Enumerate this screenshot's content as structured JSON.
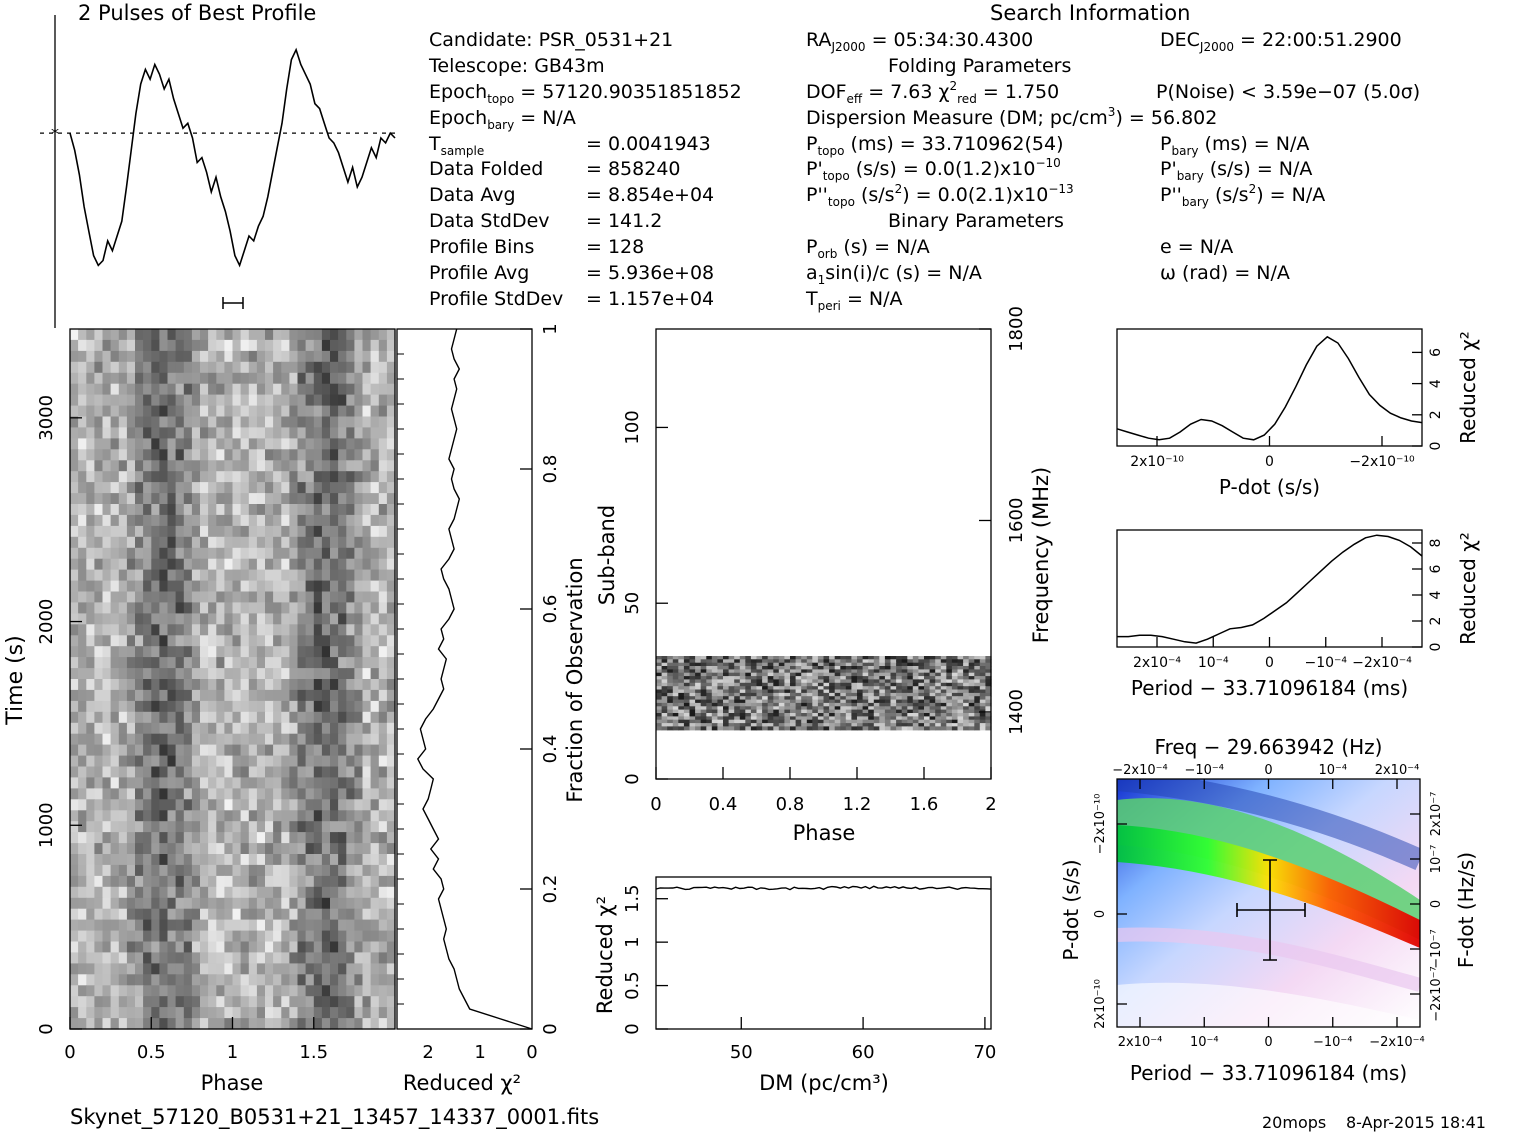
{
  "colors": {
    "ink": "#000000",
    "background": "#ffffff"
  },
  "header": {
    "profile_title": "2 Pulses of Best Profile",
    "search_title": "Search Information",
    "folding_title": "Folding Parameters",
    "binary_title": "Binary Parameters"
  },
  "info": {
    "candidate": "Candidate:  PSR_0531+21",
    "telescope": "Telescope:  GB43m",
    "epoch_topo": "= 57120.90351851852",
    "epoch_bary": "= N/A",
    "t_sample": "=   0.0041943",
    "data_folded": "=   858240",
    "data_avg": "=   8.854e+04",
    "data_stddev": "=   141.2",
    "profile_bins": "=   128",
    "profile_avg": "=   5.936e+08",
    "profile_stddev": "=   1.157e+04",
    "labels": {
      "epoch": "Epoch",
      "t": "T",
      "data_folded": "Data Folded",
      "data_avg": "Data Avg",
      "data_stddev": "Data StdDev",
      "profile_bins": "Profile Bins",
      "profile_avg": "Profile Avg",
      "profile_stddev": "Profile StdDev",
      "sub_topo": "topo",
      "sub_bary": "bary",
      "sub_sample": "sample"
    },
    "ra": "= 05:34:30.4300",
    "dec": "= 22:00:51.2900",
    "dof": "= 7.63",
    "chi2": "= 1.750",
    "p_noise": "P(Noise) < 3.59e−07  (5.0σ)",
    "dm": "Dispersion Measure (DM; pc/cm",
    "dm_value": ") = 56.802",
    "p_topo": "(ms) =  33.710962(54)",
    "p_bary": "(ms) = N/A",
    "pd_topo": "(s/s) = 0.0(1.2)x10",
    "pd_topo_exp": "−10",
    "pd_bary": "(s/s) = N/A",
    "pdd_topo": "(s/s",
    "pdd_topo_2": ") = 0.0(2.1)x10",
    "pdd_topo_exp": "−13",
    "pdd_bary": "(s/s",
    "pdd_bary_2": ") = N/A",
    "p_orb": "(s) = N/A",
    "a1": "sin(i)/c (s) = N/A",
    "t_peri": "= N/A",
    "e": "e = N/A",
    "omega": "ω (rad) = N/A"
  },
  "footer": {
    "filename": "Skynet_57120_B0531+21_13457_14337_0001.fits",
    "user": "20mops",
    "date": "8-Apr-2015 18:41"
  },
  "chart_data": [
    {
      "type": "line",
      "title": "2 Pulses of Best Profile",
      "xlim": [
        0,
        2
      ],
      "x_samples": 96,
      "values": [
        0.62,
        0.55,
        0.45,
        0.32,
        0.22,
        0.12,
        0.08,
        0.1,
        0.18,
        0.14,
        0.2,
        0.26,
        0.4,
        0.55,
        0.7,
        0.82,
        0.88,
        0.84,
        0.9,
        0.86,
        0.8,
        0.84,
        0.76,
        0.7,
        0.64,
        0.66,
        0.6,
        0.5,
        0.52,
        0.46,
        0.38,
        0.44,
        0.36,
        0.3,
        0.22,
        0.12,
        0.08,
        0.14,
        0.2,
        0.18,
        0.24,
        0.28,
        0.36,
        0.46,
        0.56,
        0.66,
        0.8,
        0.92,
        0.96,
        0.9,
        0.86,
        0.82,
        0.74,
        0.72,
        0.66,
        0.6,
        0.58,
        0.54,
        0.48,
        0.42,
        0.48,
        0.4,
        0.44,
        0.5,
        0.56,
        0.52,
        0.6,
        0.58,
        0.62,
        0.6
      ],
      "baseline": 0.62
    },
    {
      "type": "heatmap",
      "xlabel": "Phase",
      "ylabel": "Time (s)",
      "x_ticks": [
        "0",
        "0.5",
        "1",
        "1.5"
      ],
      "y_ticks": [
        "0",
        "1000",
        "2000",
        "3000"
      ],
      "xlim": [
        0,
        2
      ],
      "ylim": [
        0,
        3436
      ]
    },
    {
      "type": "line",
      "xlabel": "Reduced χ²",
      "x_ticks": [
        "2",
        "1",
        "0"
      ],
      "right_label": "Fraction of Observation",
      "right_ticks": [
        "0",
        "0.2",
        "0.4",
        "0.6",
        "0.8",
        "1"
      ],
      "values": [
        0.0,
        0.6,
        1.2,
        1.3,
        1.4,
        1.45,
        1.5,
        1.6,
        1.65,
        1.7,
        1.65,
        1.7,
        1.75,
        1.8,
        1.7,
        1.75,
        1.9,
        1.8,
        1.95,
        1.8,
        1.9,
        2.0,
        2.1,
        2.0,
        1.95,
        1.9,
        2.1,
        2.2,
        2.05,
        2.1,
        2.15,
        2.05,
        1.9,
        1.8,
        1.7,
        1.75,
        1.7,
        1.65,
        1.8,
        1.7,
        1.75,
        1.6,
        1.5,
        1.55,
        1.6,
        1.7,
        1.75,
        1.6,
        1.5,
        1.55,
        1.6,
        1.5,
        1.45,
        1.4,
        1.5,
        1.55,
        1.5,
        1.6,
        1.55,
        1.5,
        1.45,
        1.5,
        1.55,
        1.5,
        1.45,
        1.5,
        1.4,
        1.5,
        1.55,
        1.5,
        1.45
      ],
      "xlim": [
        2.6,
        0
      ]
    },
    {
      "type": "heatmap",
      "xlabel": "Phase",
      "ylabel": "Sub-band",
      "right_label": "Frequency (MHz)",
      "x_ticks": [
        "0",
        "0.4",
        "0.8",
        "1.2",
        "1.6",
        "2"
      ],
      "y_ticks": [
        "0",
        "50",
        "100"
      ],
      "right_ticks": [
        "1400",
        "1600",
        "1800"
      ],
      "xlim": [
        0,
        2
      ],
      "ylim": [
        0,
        128
      ],
      "band": [
        14,
        35
      ]
    },
    {
      "type": "line",
      "xlabel": "DM (pc/cm³)",
      "ylabel": "Reduced χ²",
      "x_ticks": [
        "50",
        "60",
        "70"
      ],
      "y_ticks": [
        "0",
        "0.5",
        "1",
        "1.5"
      ],
      "xlim": [
        43,
        70.5
      ],
      "ylim": [
        0,
        1.75
      ],
      "value": 1.62
    },
    {
      "type": "line",
      "xlabel": "P-dot (s/s)",
      "ylabel": "Reduced χ²",
      "x_ticks": [
        "2x10⁻¹⁰",
        "0",
        "−2x10⁻¹⁰"
      ],
      "y_ticks": [
        "0",
        "2",
        "4",
        "6"
      ],
      "ylim": [
        0,
        7.5
      ],
      "values": [
        1.1,
        0.9,
        0.7,
        0.5,
        0.4,
        0.5,
        0.9,
        1.4,
        1.7,
        1.6,
        1.3,
        0.9,
        0.5,
        0.4,
        0.7,
        1.4,
        2.5,
        3.8,
        5.2,
        6.4,
        7.0,
        6.6,
        5.6,
        4.4,
        3.3,
        2.6,
        2.1,
        1.8,
        1.6,
        1.5
      ]
    },
    {
      "type": "line",
      "xlabel": "Period − 33.71096184 (ms)",
      "ylabel": "Reduced χ²",
      "x_ticks": [
        "2x10⁻⁴",
        "10⁻⁴",
        "0",
        "−10⁻⁴",
        "−2x10⁻⁴"
      ],
      "y_ticks": [
        "0",
        "2",
        "4",
        "6",
        "8"
      ],
      "ylim": [
        0,
        9
      ],
      "values": [
        0.8,
        0.8,
        0.9,
        0.9,
        0.8,
        0.6,
        0.4,
        0.3,
        0.6,
        1.0,
        1.4,
        1.5,
        1.7,
        2.2,
        2.8,
        3.4,
        4.2,
        5.0,
        5.8,
        6.6,
        7.3,
        7.9,
        8.4,
        8.6,
        8.5,
        8.2,
        7.7,
        7.0
      ]
    },
    {
      "type": "heatmap",
      "title": "Freq − 29.663942 (Hz)",
      "xlabel": "Period − 33.71096184 (ms)",
      "ylabel": "P-dot (s/s)",
      "right_label": "F-dot (Hz/s)",
      "top_ticks": [
        "−2x10⁻⁴",
        "−10⁻⁴",
        "0",
        "10⁻⁴",
        "2x10⁻⁴"
      ],
      "x_ticks": [
        "2x10⁻⁴",
        "10⁻⁴",
        "0",
        "−10⁻⁴",
        "−2x10⁻⁴"
      ],
      "y_ticks": [
        "−2x10⁻¹⁰",
        "0",
        "2x10⁻¹⁰"
      ],
      "right_ticks": [
        "2x10⁻⁷",
        "10⁻⁷",
        "0",
        "−10⁻⁷",
        "−2x10⁻⁷"
      ]
    }
  ]
}
